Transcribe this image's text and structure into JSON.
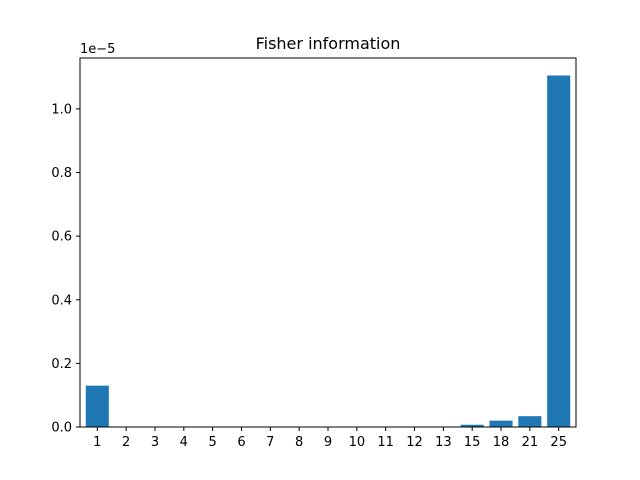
{
  "chart_data": {
    "type": "bar",
    "title": "Fisher information",
    "xlabel": "",
    "ylabel": "",
    "scale_label": "1e−5",
    "categories": [
      "1",
      "2",
      "3",
      "4",
      "5",
      "6",
      "7",
      "8",
      "9",
      "10",
      "11",
      "12",
      "13",
      "15",
      "18",
      "21",
      "25"
    ],
    "values": [
      0.13,
      0,
      0,
      0,
      0,
      0,
      0,
      0,
      0,
      0,
      0,
      0,
      0,
      0.007,
      0.02,
      0.034,
      1.105
    ],
    "ylim": [
      0,
      1.16
    ],
    "yticks": [
      "0.0",
      "0.2",
      "0.4",
      "0.6",
      "0.8",
      "1.0"
    ],
    "grid": false,
    "bar_color": "#1f77b4"
  }
}
